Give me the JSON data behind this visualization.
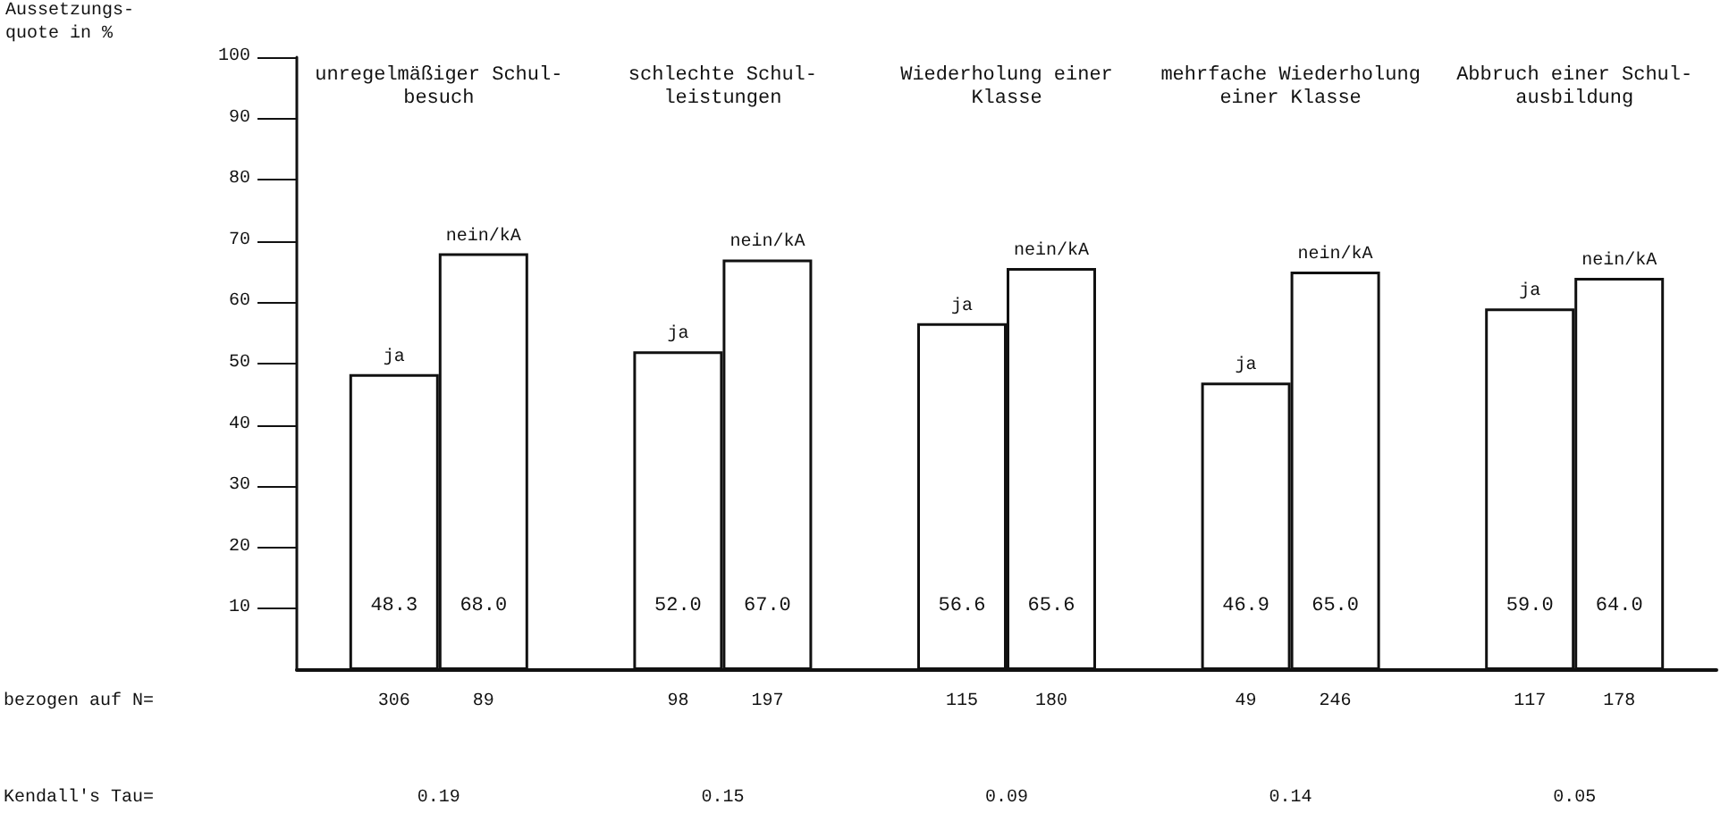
{
  "chart_data": {
    "type": "bar",
    "ylabel": "Aussetzungs-\nquote in %",
    "categories": [
      "unregelmäßiger Schul-\nbesuch",
      "schlechte Schul-\nleistungen",
      "Wiederholung einer\nKlasse",
      "mehrfache Wiederholung\neiner Klasse",
      "Abbruch einer Schul-\nausbildung"
    ],
    "series": [
      {
        "name": "ja",
        "color": "#ffffff",
        "values": [
          48.3,
          52.0,
          56.6,
          46.9,
          59.0
        ],
        "value_labels": [
          "48.3",
          "52.0",
          "56.6",
          "46.9",
          "59.0"
        ]
      },
      {
        "name": "nein/kA",
        "color": "#ffffff",
        "values": [
          68.0,
          67.0,
          65.6,
          65.0,
          64.0
        ],
        "value_labels": [
          "68.0",
          "67.0",
          "65.6",
          "65.0",
          "64.0"
        ]
      }
    ],
    "ylim": [
      0,
      100
    ],
    "yticks": [
      10,
      20,
      30,
      40,
      50,
      60,
      70,
      80,
      90,
      100
    ],
    "grid": false,
    "legend": false,
    "annotations": [
      "bezogen auf N=",
      "306",
      "89",
      "98",
      "197",
      "115",
      "180",
      "49",
      "246",
      "117",
      "178",
      "Kendall's Tau=",
      "0.19",
      "0.15",
      "0.09",
      "0.14",
      "0.05"
    ]
  }
}
